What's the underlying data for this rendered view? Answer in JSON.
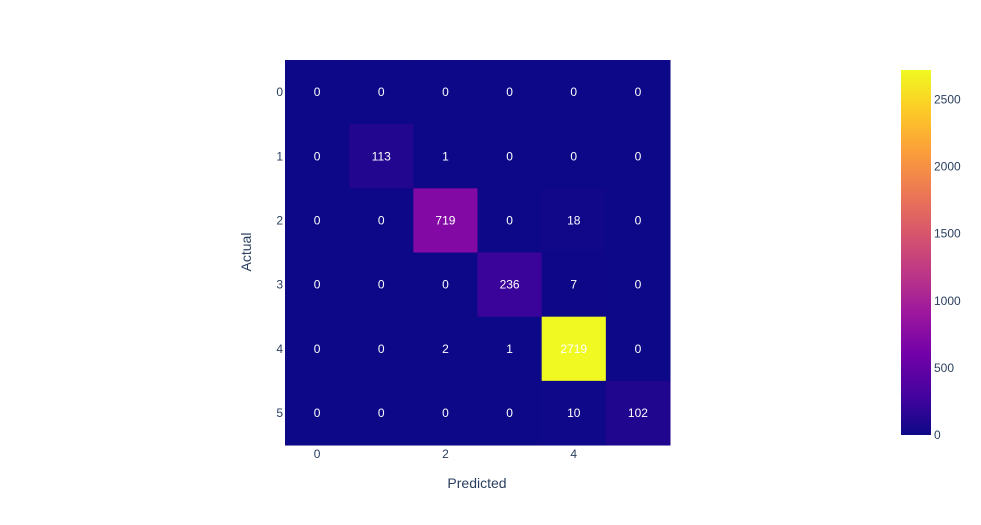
{
  "chart_data": {
    "type": "heatmap",
    "title": "",
    "xlabel": "Predicted",
    "ylabel": "Actual",
    "x_categories": [
      0,
      1,
      2,
      3,
      4,
      5
    ],
    "y_categories": [
      0,
      1,
      2,
      3,
      4,
      5
    ],
    "x_tick_labels": [
      "0",
      "2",
      "4"
    ],
    "y_tick_labels": [
      "0",
      "1",
      "2",
      "3",
      "4",
      "5"
    ],
    "z": [
      [
        0,
        0,
        0,
        0,
        0,
        0
      ],
      [
        0,
        113,
        1,
        0,
        0,
        0
      ],
      [
        0,
        0,
        719,
        0,
        18,
        0
      ],
      [
        0,
        0,
        0,
        236,
        7,
        0
      ],
      [
        0,
        0,
        2,
        1,
        2719,
        0
      ],
      [
        0,
        0,
        0,
        0,
        10,
        102
      ]
    ],
    "zrange": [
      0,
      2719
    ],
    "colorscale": "plasma",
    "colorbar": {
      "tick_values": [
        0,
        500,
        1000,
        1500,
        2000,
        2500
      ],
      "tick_labels": [
        "0",
        "500",
        "1000",
        "1500",
        "2000",
        "2500"
      ]
    },
    "colors": {
      "background": "#ffffff",
      "cell_text": "#ffffff",
      "axis_text": "#2a3f5f"
    }
  }
}
